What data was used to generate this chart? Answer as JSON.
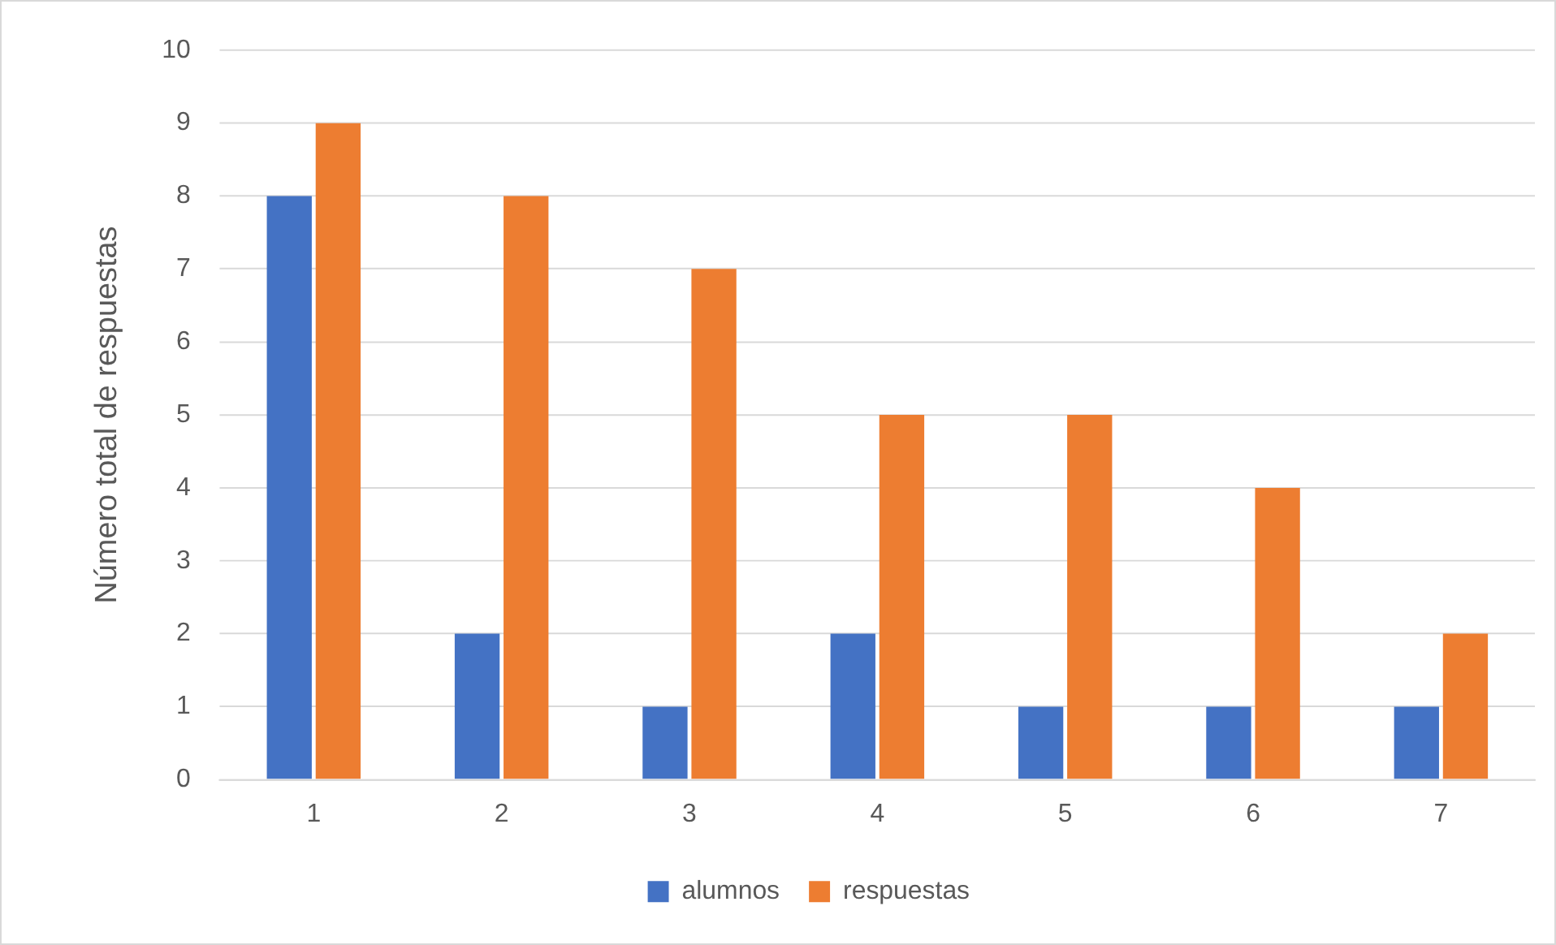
{
  "chart_data": {
    "type": "bar",
    "ylabel": "Número total de respuestas",
    "categories": [
      "1",
      "2",
      "3",
      "4",
      "5",
      "6",
      "7"
    ],
    "series": [
      {
        "name": "alumnos",
        "color": "#4472c4",
        "values": [
          8,
          2,
          1,
          2,
          1,
          1,
          1
        ]
      },
      {
        "name": "respuestas",
        "color": "#ed7d31",
        "values": [
          9,
          8,
          7,
          5,
          5,
          4,
          2
        ]
      }
    ],
    "ylim": [
      0,
      10
    ],
    "yticks": [
      0,
      1,
      2,
      3,
      4,
      5,
      6,
      7,
      8,
      9,
      10
    ],
    "grid": "y",
    "legend": "bottom"
  }
}
